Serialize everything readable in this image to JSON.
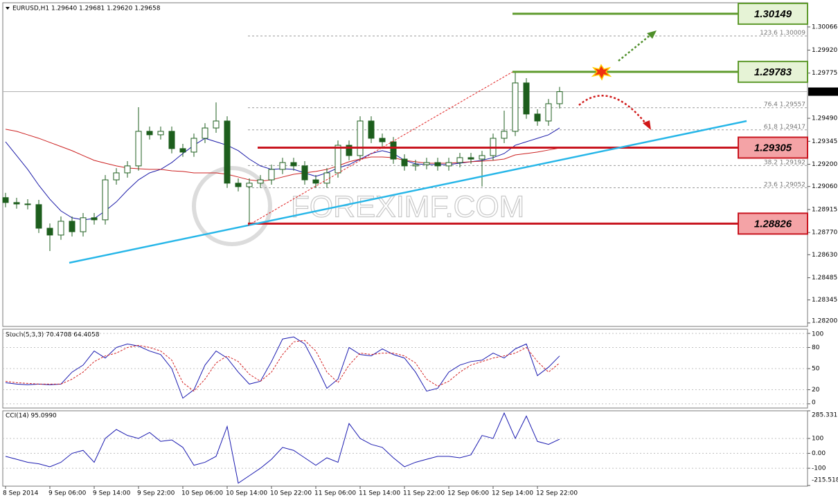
{
  "chart_data": [
    {
      "type": "candlestick",
      "title": "EURUSD,H1 1.29640 1.29681 1.29620 1.29658",
      "categories": [
        "8 Sep 2014",
        null,
        null,
        null,
        "9 Sep 06:00",
        null,
        null,
        null,
        "9 Sep 14:00",
        null,
        null,
        null,
        "9 Sep 22:00",
        null,
        null,
        null,
        "10 Sep 06:00",
        null,
        null,
        null,
        "10 Sep 14:00",
        null,
        null,
        null,
        "10 Sep 22:00",
        null,
        null,
        null,
        "11 Sep 06:00",
        null,
        null,
        null,
        "11 Sep 14:00",
        null,
        null,
        null,
        "11 Sep 22:00",
        null,
        null,
        null,
        "12 Sep 06:00",
        null,
        null,
        null,
        "12 Sep 14:00",
        null,
        null,
        null,
        "12 Sep 22:00",
        null,
        null
      ],
      "open": [
        1.2899,
        1.28959,
        1.2895,
        1.28946,
        1.28797,
        1.28754,
        1.28841,
        1.28775,
        1.28863,
        1.2885,
        1.29102,
        1.29146,
        1.2919,
        1.29408,
        1.29386,
        1.29408,
        1.29299,
        1.29277,
        1.29364,
        1.29429,
        1.29473,
        1.29081,
        1.29059,
        1.29081,
        1.29102,
        1.29168,
        1.29211,
        1.2919,
        1.29102,
        1.29081,
        1.29146,
        1.2932,
        1.29255,
        1.29473,
        1.29364,
        1.29342,
        1.29233,
        1.2919,
        1.29198,
        1.29211,
        1.2919,
        1.29211,
        1.29242,
        1.29233,
        1.29255,
        1.29364,
        1.29408,
        1.29713,
        1.29517,
        1.29473,
        1.29582
      ],
      "high": [
        1.2902,
        1.28989,
        1.2898,
        1.28976,
        1.28827,
        1.28871,
        1.28871,
        1.28893,
        1.28893,
        1.29132,
        1.29176,
        1.2922,
        1.2956,
        1.29438,
        1.29438,
        1.29438,
        1.29329,
        1.29394,
        1.29459,
        1.2959,
        1.29503,
        1.29111,
        1.29111,
        1.29132,
        1.29198,
        1.29241,
        1.29241,
        1.2922,
        1.29132,
        1.29176,
        1.2935,
        1.2935,
        1.29503,
        1.29503,
        1.29394,
        1.29372,
        1.29263,
        1.29228,
        1.29241,
        1.29241,
        1.29241,
        1.29272,
        1.29272,
        1.29285,
        1.29394,
        1.29538,
        1.29783,
        1.29743,
        1.29547,
        1.29612,
        1.29688
      ],
      "low": [
        1.28929,
        1.2892,
        1.28916,
        1.28767,
        1.28653,
        1.28724,
        1.28745,
        1.28745,
        1.2882,
        1.2882,
        1.29072,
        1.29116,
        1.2916,
        1.29356,
        1.29356,
        1.29269,
        1.29247,
        1.29247,
        1.29334,
        1.29399,
        1.29051,
        1.29029,
        1.28826,
        1.29051,
        1.29072,
        1.29138,
        1.2916,
        1.29072,
        1.29051,
        1.29051,
        1.29116,
        1.29225,
        1.29225,
        1.29334,
        1.29312,
        1.29203,
        1.2916,
        1.2916,
        1.29168,
        1.2916,
        1.2916,
        1.29181,
        1.29203,
        1.2906,
        1.29225,
        1.29334,
        1.29378,
        1.29487,
        1.29443,
        1.29443,
        1.29552
      ],
      "close": [
        1.28959,
        1.2895,
        1.28946,
        1.28797,
        1.28754,
        1.28841,
        1.28775,
        1.28863,
        1.2885,
        1.29102,
        1.29146,
        1.2919,
        1.29408,
        1.29386,
        1.29408,
        1.29299,
        1.29277,
        1.29364,
        1.29429,
        1.29473,
        1.29081,
        1.29059,
        1.29081,
        1.29102,
        1.29168,
        1.29211,
        1.2919,
        1.29102,
        1.29081,
        1.29146,
        1.2932,
        1.29255,
        1.29473,
        1.29364,
        1.29342,
        1.29233,
        1.2919,
        1.29198,
        1.29211,
        1.2919,
        1.29211,
        1.29242,
        1.29233,
        1.29255,
        1.29364,
        1.29408,
        1.29713,
        1.29517,
        1.29473,
        1.29582,
        1.29658
      ],
      "up_color": "#ffffff",
      "down_color": "#1d5e1d",
      "wick_color": "#1d5e1d",
      "overlays": [
        {
          "color": "#1a1aa8",
          "values": [
            1.29342,
            1.29255,
            1.29168,
            1.29068,
            1.2898,
            1.28906,
            1.28863,
            1.2885,
            1.28858,
            1.28906,
            1.28963,
            1.29037,
            1.29102,
            1.29146,
            1.29168,
            1.29211,
            1.29268,
            1.2932,
            1.29364,
            1.29342,
            1.2932,
            1.29286,
            1.29233,
            1.2919,
            1.29168,
            1.29172,
            1.29168,
            1.29146,
            1.29124,
            1.29146,
            1.29177,
            1.29198,
            1.29233,
            1.29268,
            1.29286,
            1.29268,
            1.29225,
            1.29203,
            1.29198,
            1.29198,
            1.29198,
            1.29207,
            1.29216,
            1.29225,
            1.29242,
            1.29268,
            1.2932,
            1.29342,
            1.29364,
            1.29386,
            1.29429
          ]
        },
        {
          "color": "#cc2020",
          "values": [
            1.29421,
            1.29408,
            1.29386,
            1.29364,
            1.29338,
            1.29312,
            1.29286,
            1.29255,
            1.29225,
            1.29207,
            1.2919,
            1.29177,
            1.29172,
            1.29168,
            1.29168,
            1.29159,
            1.29155,
            1.29146,
            1.29146,
            1.29146,
            1.29137,
            1.2912,
            1.29102,
            1.29094,
            1.29102,
            1.2912,
            1.29137,
            1.29146,
            1.29155,
            1.29168,
            1.2919,
            1.29216,
            1.29233,
            1.29246,
            1.29246,
            1.29242,
            1.29225,
            1.29216,
            1.29207,
            1.29207,
            1.29207,
            1.29211,
            1.29216,
            1.2922,
            1.29225,
            1.29233,
            1.29259,
            1.29268,
            1.29277,
            1.2929,
            1.29303
          ]
        }
      ],
      "ylim": [
        1.28178,
        1.30214
      ],
      "yticks": [
        {
          "value": 1.30066,
          "label": "1.30066"
        },
        {
          "value": 1.2992,
          "label": "1.29920"
        },
        {
          "value": 1.29775,
          "label": "1.29775"
        },
        {
          "value": 1.2949,
          "label": "1.29490"
        },
        {
          "value": 1.29345,
          "label": "1.29345"
        },
        {
          "value": 1.292,
          "label": "1.29200"
        },
        {
          "value": 1.2906,
          "label": "1.29060"
        },
        {
          "value": 1.28915,
          "label": "1.28915"
        },
        {
          "value": 1.2877,
          "label": "1.28770"
        },
        {
          "value": 1.2863,
          "label": "1.28630"
        },
        {
          "value": 1.28485,
          "label": "1.28485"
        },
        {
          "value": 1.28345,
          "label": "1.28345"
        },
        {
          "value": 1.282,
          "label": "1.28200"
        }
      ],
      "current": 1.29658,
      "fib": [
        {
          "ratio": 123.6,
          "value": 1.30009
        },
        {
          "ratio": 76.4,
          "value": 1.29557
        },
        {
          "ratio": 61.8,
          "value": 1.29417
        },
        {
          "ratio": 38.2,
          "value": 1.29192
        },
        {
          "ratio": 23.6,
          "value": 1.29052
        }
      ],
      "levels": [
        {
          "value": 1.30149,
          "color": "#5e9a2c",
          "fill": "#e6f3d6"
        },
        {
          "value": 1.29783,
          "color": "#5e9a2c",
          "fill": "#e6f3d6"
        },
        {
          "value": 1.29305,
          "color": "#c8141e",
          "fill": "#f4a3a6"
        },
        {
          "value": 1.28826,
          "color": "#c8141e",
          "fill": "#f4a3a6"
        }
      ],
      "watermark": "FOREXIMF.COM"
    },
    {
      "type": "line",
      "title": "Stoch(5,3,3) 70.4708 64.4058",
      "series": [
        {
          "color": "#1a1ab0",
          "dash": false,
          "values": [
            30,
            28,
            27,
            28,
            27,
            28,
            45,
            55,
            75,
            65,
            80,
            85,
            82,
            75,
            70,
            50,
            8,
            20,
            55,
            75,
            65,
            45,
            28,
            32,
            60,
            92,
            95,
            85,
            55,
            22,
            35,
            80,
            70,
            68,
            78,
            70,
            65,
            45,
            18,
            22,
            45,
            55,
            60,
            62,
            72,
            65,
            78,
            85,
            40,
            52,
            68
          ]
        },
        {
          "color": "#d42020",
          "dash": true,
          "values": [
            32,
            30,
            29,
            28,
            28,
            28,
            35,
            45,
            60,
            68,
            72,
            80,
            83,
            80,
            75,
            62,
            30,
            18,
            35,
            58,
            68,
            60,
            42,
            32,
            45,
            70,
            88,
            90,
            75,
            45,
            30,
            55,
            72,
            70,
            72,
            72,
            68,
            58,
            35,
            25,
            32,
            45,
            55,
            60,
            65,
            68,
            72,
            80,
            60,
            45,
            58
          ]
        }
      ],
      "ylim": [
        -6,
        105
      ],
      "yticks": [
        100,
        80,
        50,
        20,
        0
      ],
      "grid": true
    },
    {
      "type": "line",
      "title": "CCI(14) 95.0990",
      "series": [
        {
          "color": "#1a1ab0",
          "dash": false,
          "values": [
            -20,
            -40,
            -60,
            -70,
            -90,
            -60,
            0,
            20,
            -60,
            100,
            160,
            120,
            100,
            140,
            80,
            90,
            40,
            -80,
            -60,
            -20,
            180,
            -200,
            -150,
            -100,
            -40,
            40,
            20,
            -30,
            -80,
            -30,
            -60,
            200,
            100,
            60,
            40,
            -30,
            -90,
            -60,
            -40,
            -20,
            -20,
            -30,
            -10,
            120,
            100,
            270,
            100,
            250,
            80,
            60,
            95
          ]
        }
      ],
      "ylim": [
        -215.5187,
        285.3317
      ],
      "yticks": [
        285.3317,
        100,
        {
          "value": 0,
          "label": "0.00"
        },
        -100,
        -215.5187
      ],
      "grid": true
    }
  ]
}
